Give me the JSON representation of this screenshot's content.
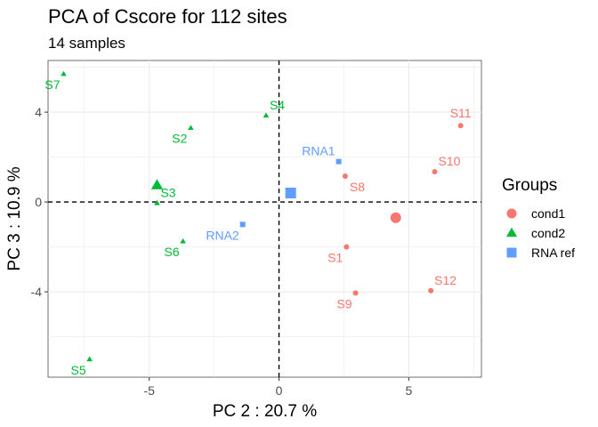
{
  "chart_data": {
    "type": "scatter",
    "title": "PCA of Cscore for 112 sites",
    "subtitle": "14 samples",
    "xlabel": "PC 2 : 20.7 %",
    "ylabel": "PC 3 : 10.9 %",
    "xlim": [
      -8.9,
      7.8
    ],
    "ylim": [
      -7.8,
      6.3
    ],
    "xticks": [
      -5,
      0,
      5
    ],
    "xtick_labels": [
      "-5",
      "0",
      "5"
    ],
    "yticks": [
      -4,
      0,
      4
    ],
    "ytick_labels": [
      "-4",
      "0",
      "4"
    ],
    "grid": true,
    "reference_lines": {
      "x": 0,
      "y": 0,
      "style": "dashed"
    },
    "legend": {
      "title": "Groups",
      "placement": "right",
      "entries": [
        {
          "label": "cond1",
          "shape": "circle",
          "color": "#F8766D"
        },
        {
          "label": "cond2",
          "shape": "triangle",
          "color": "#00BA38"
        },
        {
          "label": "RNA ref",
          "shape": "square",
          "color": "#619CFF"
        }
      ]
    },
    "series": [
      {
        "name": "cond1",
        "shape": "circle",
        "color": "#F8766D",
        "points": [
          {
            "label": "S11",
            "x": 7.0,
            "y": 3.4,
            "label_pos": "top"
          },
          {
            "label": "S10",
            "x": 6.0,
            "y": 1.35,
            "label_pos": "top-right"
          },
          {
            "label": "S8",
            "x": 2.55,
            "y": 1.15,
            "label_pos": "bottom-right"
          },
          {
            "label": "S1",
            "x": 2.6,
            "y": -2.0,
            "label_pos": "bottom-left"
          },
          {
            "label": "S9",
            "x": 2.95,
            "y": -4.05,
            "label_pos": "bottom-left"
          },
          {
            "label": "S12",
            "x": 5.85,
            "y": -3.95,
            "label_pos": "top-right"
          }
        ],
        "centroid": {
          "x": 4.5,
          "y": -0.7
        }
      },
      {
        "name": "cond2",
        "shape": "triangle",
        "color": "#00BA38",
        "points": [
          {
            "label": "S7",
            "x": -8.3,
            "y": 5.7,
            "label_pos": "bottom-left"
          },
          {
            "label": "S4",
            "x": -0.5,
            "y": 3.85,
            "label_pos": "top-right"
          },
          {
            "label": "S2",
            "x": -3.4,
            "y": 3.3,
            "label_pos": "bottom-left"
          },
          {
            "label": "S3",
            "x": -4.7,
            "y": -0.05,
            "label_pos": "top-right"
          },
          {
            "label": "S6",
            "x": -3.7,
            "y": -1.75,
            "label_pos": "bottom-left"
          },
          {
            "label": "S5",
            "x": -7.3,
            "y": -7.0,
            "label_pos": "bottom-left"
          }
        ],
        "centroid": {
          "x": -4.7,
          "y": 0.75
        }
      },
      {
        "name": "RNA ref",
        "shape": "square",
        "color": "#619CFF",
        "points": [
          {
            "label": "RNA1",
            "x": 2.3,
            "y": 1.8,
            "label_pos": "top-left"
          },
          {
            "label": "RNA2",
            "x": -1.4,
            "y": -1.0,
            "label_pos": "bottom-left"
          }
        ],
        "centroid": {
          "x": 0.45,
          "y": 0.4
        }
      }
    ]
  }
}
